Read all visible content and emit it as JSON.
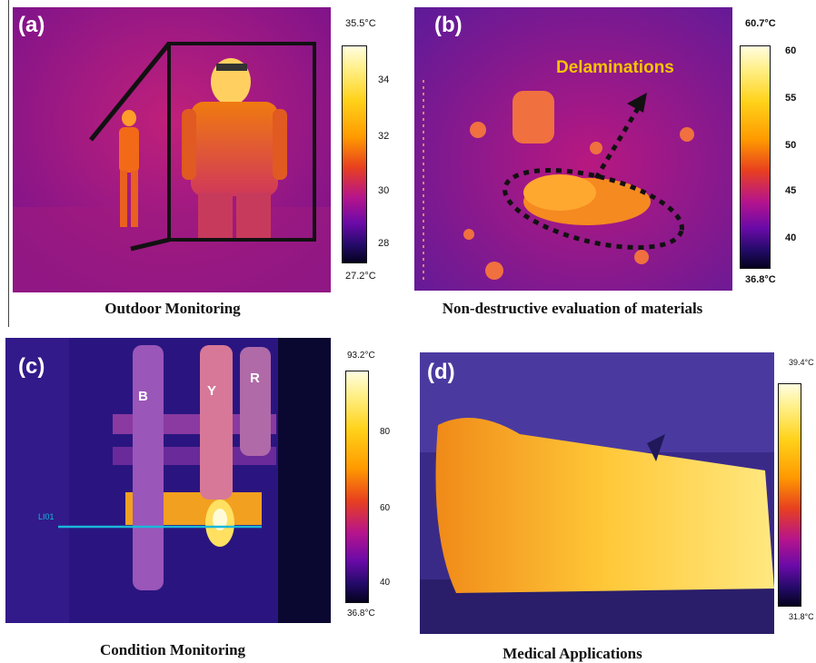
{
  "panels": {
    "a": {
      "letter": "(a)",
      "caption": "Outdoor Monitoring",
      "scale_max": "35.5°C",
      "scale_min": "27.2°C",
      "ticks": [
        "34",
        "32",
        "30",
        "28"
      ]
    },
    "b": {
      "letter": "(b)",
      "caption": "Non-destructive evaluation of materials",
      "annotation": "Delaminations",
      "scale_max": "60.7°C",
      "scale_min": "36.8°C",
      "ticks": [
        "60",
        "55",
        "50",
        "45",
        "40"
      ]
    },
    "c": {
      "letter": "(c)",
      "caption": "Condition Monitoring",
      "phase_labels": [
        "B",
        "Y",
        "R"
      ],
      "line_label": "LI01",
      "scale_max": "93.2°C",
      "scale_min": "36.8°C",
      "ticks": [
        "80",
        "60",
        "40"
      ]
    },
    "d": {
      "letter": "(d)",
      "caption": "Medical Applications",
      "scale_max": "39.4°C",
      "scale_min": "31.8°C"
    }
  },
  "colors": {
    "annotation": "#f5c400",
    "measure_line": "#19b8d8"
  }
}
